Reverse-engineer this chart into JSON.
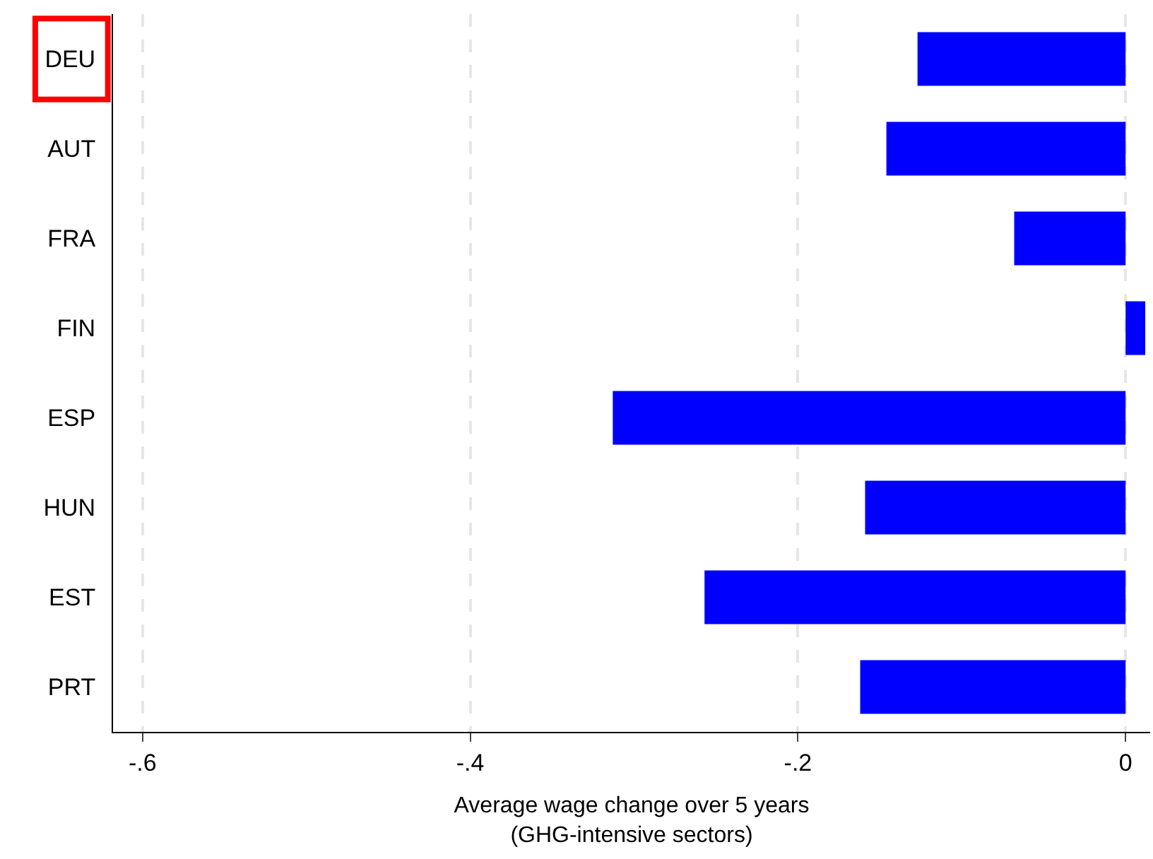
{
  "chart_data": {
    "type": "bar",
    "orientation": "horizontal",
    "categories": [
      "DEU",
      "AUT",
      "FRA",
      "FIN",
      "ESP",
      "HUN",
      "EST",
      "PRT"
    ],
    "values": [
      -0.127,
      -0.146,
      -0.068,
      0.012,
      -0.313,
      -0.159,
      -0.257,
      -0.162
    ],
    "color": "#0000ff",
    "xlabel": "Average wage change over 5 years\n(GHG-intensive sectors)",
    "xlim": [
      -0.618,
      0.015
    ],
    "xticks": [
      {
        "value": -0.6,
        "label": "-.6"
      },
      {
        "value": -0.4,
        "label": "-.4"
      },
      {
        "value": -0.2,
        "label": "-.2"
      },
      0
    ],
    "grid": "x"
  }
}
